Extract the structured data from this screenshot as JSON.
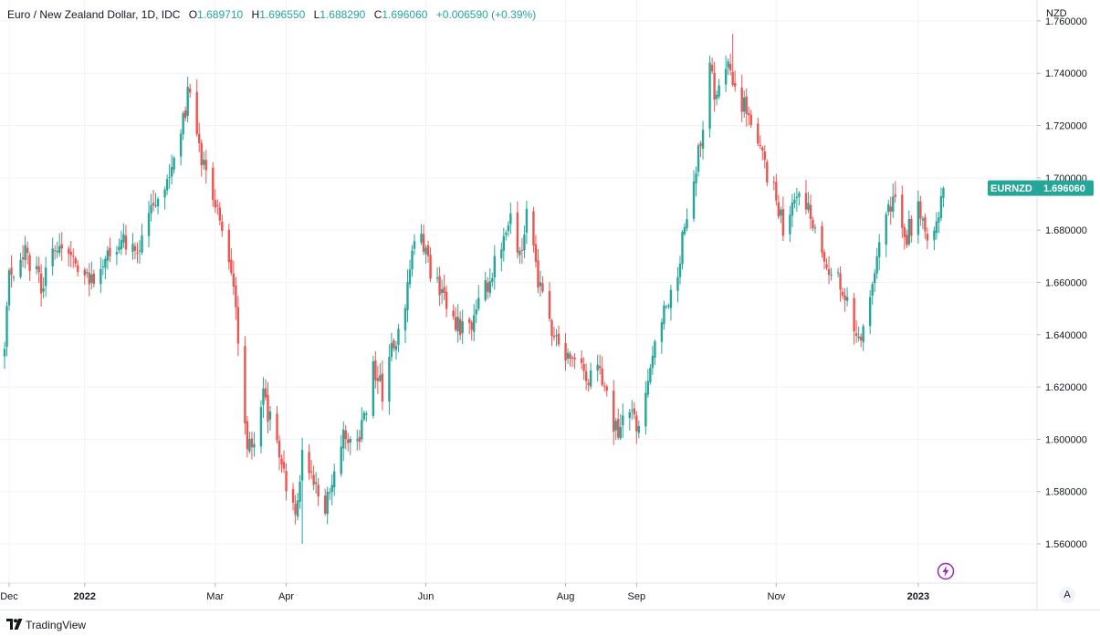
{
  "legend": {
    "symbol": "Euro / New Zealand Dollar, 1D, IDC",
    "open_label": "O",
    "open": "1.689710",
    "high_label": "H",
    "high": "1.696550",
    "low_label": "L",
    "low": "1.688290",
    "close_label": "C",
    "close": "1.696060",
    "change": "+0.006590 (+0.39%)"
  },
  "price_axis": {
    "unit": "NZD"
  },
  "price_tag": {
    "ticker": "EURNZD",
    "price": "1.696060"
  },
  "auto_button": "A",
  "branding": "TradingView",
  "colors": {
    "up": "#26a69a",
    "down": "#ef5350",
    "grid": "#f0f3fa",
    "tag": "#26a69a",
    "alert": "#9c27b0"
  },
  "icons": {
    "logo": "tradingview-logo-icon",
    "alert": "lightning-icon"
  },
  "chart_data": {
    "type": "candlestick",
    "ylim": [
      1.545,
      1.768
    ],
    "y_ticks": [
      1.56,
      1.58,
      1.6,
      1.62,
      1.64,
      1.66,
      1.68,
      1.7,
      1.72,
      1.74,
      1.76
    ],
    "y_tick_labels": [
      "1.560000",
      "1.580000",
      "1.600000",
      "1.620000",
      "1.640000",
      "1.660000",
      "1.680000",
      "1.700000",
      "1.720000",
      "1.740000",
      "1.760000"
    ],
    "x_start": "2021-11-29",
    "x_end": "2023-01-20",
    "x_ticks": [
      {
        "label": "Dec",
        "date": "2021-12-01"
      },
      {
        "label": "2022",
        "date": "2022-01-03"
      },
      {
        "label": "Mar",
        "date": "2022-03-01"
      },
      {
        "label": "Apr",
        "date": "2022-04-01"
      },
      {
        "label": "Jun",
        "date": "2022-06-01"
      },
      {
        "label": "Aug",
        "date": "2022-08-01"
      },
      {
        "label": "Sep",
        "date": "2022-09-01"
      },
      {
        "label": "Nov",
        "date": "2022-11-01"
      },
      {
        "label": "2023",
        "date": "2023-01-02"
      }
    ],
    "close_path": [
      [
        "2021-11-29",
        1.635
      ],
      [
        "2021-12-01",
        1.662
      ],
      [
        "2021-12-08",
        1.671
      ],
      [
        "2021-12-15",
        1.66
      ],
      [
        "2021-12-22",
        1.674
      ],
      [
        "2021-12-29",
        1.666
      ],
      [
        "2022-01-05",
        1.661
      ],
      [
        "2022-01-12",
        1.671
      ],
      [
        "2022-01-19",
        1.678
      ],
      [
        "2022-01-26",
        1.674
      ],
      [
        "2022-02-02",
        1.688
      ],
      [
        "2022-02-09",
        1.703
      ],
      [
        "2022-02-14",
        1.716
      ],
      [
        "2022-02-17",
        1.731
      ],
      [
        "2022-02-21",
        1.72
      ],
      [
        "2022-02-24",
        1.703
      ],
      [
        "2022-03-01",
        1.688
      ],
      [
        "2022-03-07",
        1.672
      ],
      [
        "2022-03-11",
        1.64
      ],
      [
        "2022-03-15",
        1.596
      ],
      [
        "2022-03-18",
        1.598
      ],
      [
        "2022-03-22",
        1.615
      ],
      [
        "2022-03-25",
        1.608
      ],
      [
        "2022-03-30",
        1.59
      ],
      [
        "2022-04-05",
        1.573
      ],
      [
        "2022-04-08",
        1.594
      ],
      [
        "2022-04-13",
        1.582
      ],
      [
        "2022-04-18",
        1.573
      ],
      [
        "2022-04-22",
        1.588
      ],
      [
        "2022-04-27",
        1.602
      ],
      [
        "2022-05-03",
        1.598
      ],
      [
        "2022-05-09",
        1.628
      ],
      [
        "2022-05-13",
        1.618
      ],
      [
        "2022-05-18",
        1.637
      ],
      [
        "2022-05-23",
        1.646
      ],
      [
        "2022-05-26",
        1.676
      ],
      [
        "2022-05-30",
        1.68
      ],
      [
        "2022-06-03",
        1.662
      ],
      [
        "2022-06-08",
        1.659
      ],
      [
        "2022-06-13",
        1.647
      ],
      [
        "2022-06-17",
        1.641
      ],
      [
        "2022-06-22",
        1.645
      ],
      [
        "2022-06-28",
        1.66
      ],
      [
        "2022-07-04",
        1.674
      ],
      [
        "2022-07-08",
        1.683
      ],
      [
        "2022-07-12",
        1.67
      ],
      [
        "2022-07-15",
        1.685
      ],
      [
        "2022-07-20",
        1.662
      ],
      [
        "2022-07-25",
        1.645
      ],
      [
        "2022-07-29",
        1.638
      ],
      [
        "2022-08-03",
        1.632
      ],
      [
        "2022-08-09",
        1.624
      ],
      [
        "2022-08-15",
        1.627
      ],
      [
        "2022-08-19",
        1.616
      ],
      [
        "2022-08-24",
        1.6
      ],
      [
        "2022-08-29",
        1.614
      ],
      [
        "2022-09-01",
        1.604
      ],
      [
        "2022-09-06",
        1.622
      ],
      [
        "2022-09-09",
        1.636
      ],
      [
        "2022-09-14",
        1.65
      ],
      [
        "2022-09-19",
        1.665
      ],
      [
        "2022-09-23",
        1.688
      ],
      [
        "2022-09-27",
        1.704
      ],
      [
        "2022-09-30",
        1.718
      ],
      [
        "2022-10-03",
        1.746
      ],
      [
        "2022-10-05",
        1.73
      ],
      [
        "2022-10-10",
        1.742
      ],
      [
        "2022-10-13",
        1.74
      ],
      [
        "2022-10-17",
        1.729
      ],
      [
        "2022-10-21",
        1.721
      ],
      [
        "2022-10-26",
        1.706
      ],
      [
        "2022-10-31",
        1.695
      ],
      [
        "2022-11-04",
        1.682
      ],
      [
        "2022-11-08",
        1.692
      ],
      [
        "2022-11-14",
        1.69
      ],
      [
        "2022-11-18",
        1.678
      ],
      [
        "2022-11-23",
        1.668
      ],
      [
        "2022-11-29",
        1.658
      ],
      [
        "2022-12-05",
        1.645
      ],
      [
        "2022-12-09",
        1.64
      ],
      [
        "2022-12-14",
        1.665
      ],
      [
        "2022-12-19",
        1.69
      ],
      [
        "2022-12-23",
        1.69
      ],
      [
        "2022-12-28",
        1.678
      ],
      [
        "2023-01-02",
        1.688
      ],
      [
        "2023-01-05",
        1.678
      ],
      [
        "2023-01-10",
        1.684
      ],
      [
        "2023-01-13",
        1.696
      ]
    ],
    "range_high": [
      1.755,
      "2022-10-13"
    ],
    "range_low": [
      1.56,
      "2022-04-08"
    ],
    "last_close": 1.69606
  }
}
